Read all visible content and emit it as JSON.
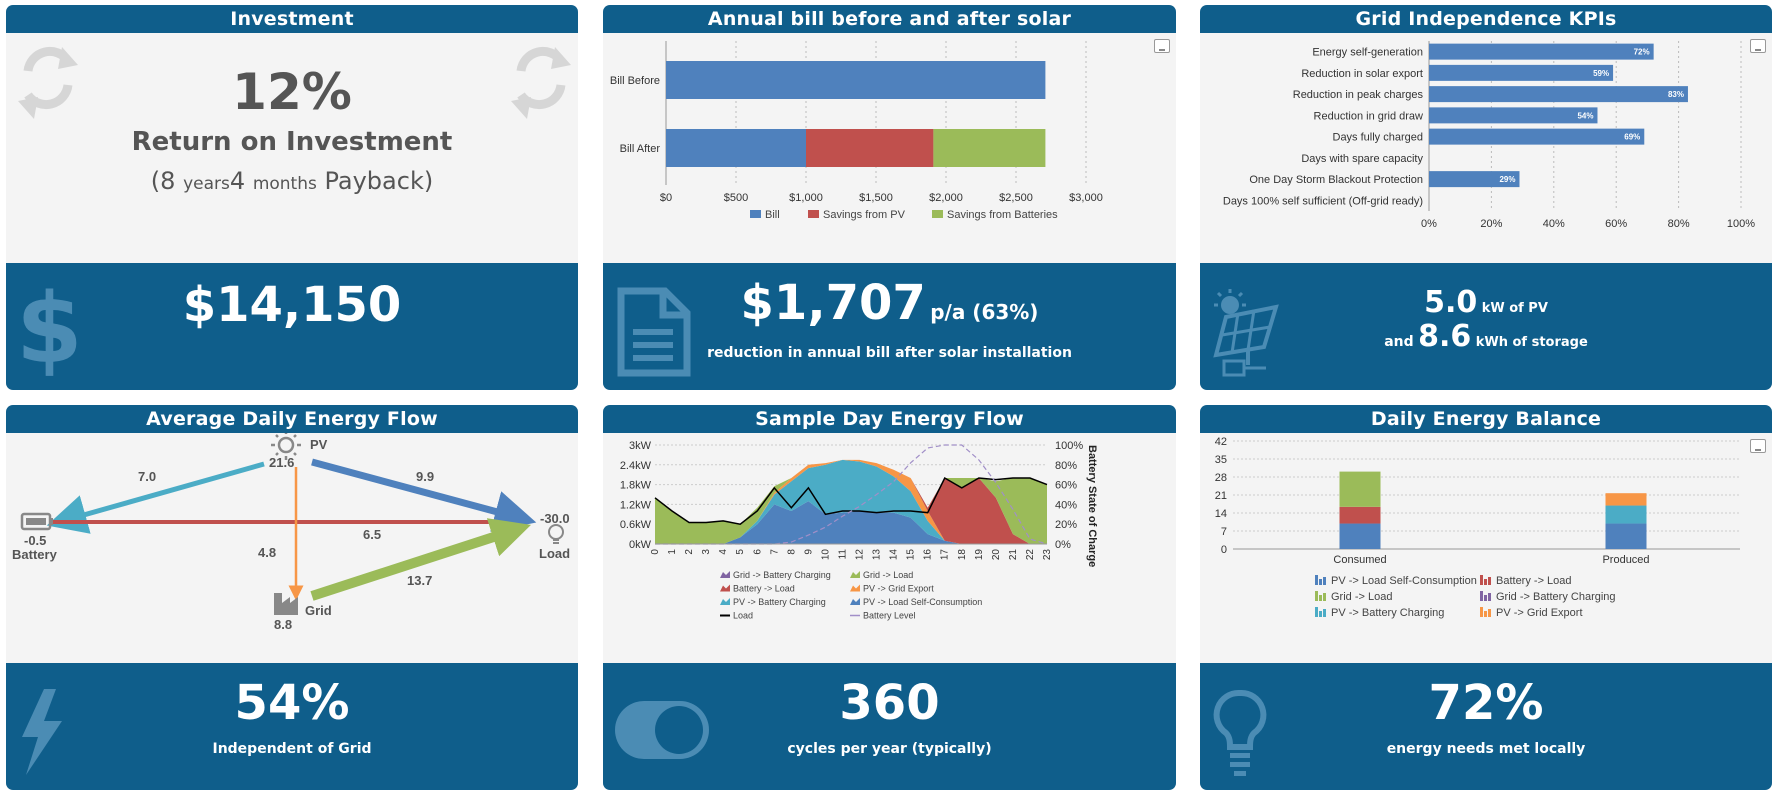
{
  "investment": {
    "title": "Investment",
    "roi": "12%",
    "roi_label": "Return on Investment",
    "payback_open": "(",
    "payback_years": "8",
    "payback_years_unit": "years",
    "payback_months": "4",
    "payback_months_unit": "months",
    "payback_label": "Payback)",
    "cost": "$14,150",
    "icon": "dollar-icon"
  },
  "annual_bill": {
    "title": "Annual bill before and after solar",
    "savings": "$1,707",
    "savings_unit": "p/a (63%)",
    "savings_caption": "reduction in annual bill after solar installation",
    "icon": "document-icon"
  },
  "grid_kpis": {
    "title": "Grid Independence KPIs",
    "pv_size": "5.0",
    "pv_unit": "kW of PV",
    "and_label": "and",
    "storage_size": "8.6",
    "storage_unit": "kWh of storage",
    "icon": "solar-panel-icon"
  },
  "energy_flow": {
    "title": "Average Daily Energy Flow",
    "pv_label": "PV",
    "pv_value": "21.6",
    "battery_label": "Battery",
    "battery_value": "-0.5",
    "load_label": "Load",
    "load_value": "-30.0",
    "grid_label": "Grid",
    "grid_value": "8.8",
    "flow_pv_battery": "7.0",
    "flow_pv_load": "9.9",
    "flow_battery_load": "6.5",
    "flow_pv_grid": "4.8",
    "flow_grid_load": "13.7",
    "independence": "54%",
    "independence_caption": "Independent of Grid",
    "colors": {
      "pv_battery": "#4bacc6",
      "pv_load": "#4f81bd",
      "battery_load": "#c0504d",
      "pv_grid": "#f79646",
      "grid_load": "#9bbb59"
    }
  },
  "sample_day": {
    "title": "Sample Day Energy Flow",
    "cycles": "360",
    "cycles_caption": "cycles per year (typically)",
    "icon": "toggle-icon"
  },
  "daily_balance": {
    "title": "Daily Energy Balance",
    "percent": "72%",
    "caption": "energy needs met locally",
    "icon": "lightbulb-icon"
  },
  "chart_data": [
    {
      "id": "annual-bill",
      "type": "bar",
      "orientation": "horizontal",
      "stacked": true,
      "categories": [
        "Bill Before",
        "Bill After"
      ],
      "series": [
        {
          "name": "Bill",
          "values": [
            2710,
            1000
          ],
          "color": "#4f81bd"
        },
        {
          "name": "Savings from PV",
          "values": [
            0,
            910
          ],
          "color": "#c0504d"
        },
        {
          "name": "Savings from Batteries",
          "values": [
            0,
            800
          ],
          "color": "#9bbb59"
        }
      ],
      "xlim": [
        0,
        3000
      ],
      "xticks": [
        "$0",
        "$500",
        "$1,000",
        "$1,500",
        "$2,000",
        "$2,500",
        "$3,000"
      ],
      "grid": true,
      "legend": "bottom"
    },
    {
      "id": "grid-kpis",
      "type": "bar",
      "orientation": "horizontal",
      "categories": [
        "Energy self-generation",
        "Reduction in solar export",
        "Reduction in peak charges",
        "Reduction in grid draw",
        "Days fully charged",
        "Days with spare capacity",
        "One Day Storm Blackout Protection",
        "Days 100% self sufficient (Off-grid ready)"
      ],
      "values": [
        72,
        59,
        83,
        54,
        69,
        0,
        29,
        0
      ],
      "data_labels": [
        "72%",
        "59%",
        "83%",
        "54%",
        "69%",
        "",
        "29%",
        ""
      ],
      "xlim": [
        0,
        100
      ],
      "xticks": [
        "0%",
        "20%",
        "40%",
        "60%",
        "80%",
        "100%"
      ],
      "color": "#4f81bd",
      "grid": true
    },
    {
      "id": "sample-day",
      "type": "area",
      "stacked": true,
      "x": [
        0,
        1,
        2,
        3,
        4,
        5,
        6,
        7,
        8,
        9,
        10,
        11,
        12,
        13,
        14,
        15,
        16,
        17,
        18,
        19,
        20,
        21,
        22,
        23
      ],
      "series": [
        {
          "name": "Grid -> Battery Charging",
          "color": "#8064a2",
          "values": [
            0,
            0,
            0,
            0,
            0,
            0,
            0,
            0,
            0,
            0,
            0,
            0,
            0,
            0,
            0,
            0,
            0,
            0,
            0,
            0,
            0,
            0,
            0,
            0
          ]
        },
        {
          "name": "PV -> Load Self-Consumption",
          "color": "#4f81bd",
          "values": [
            0,
            0,
            0,
            0,
            0,
            0.2,
            0.6,
            1.2,
            1.0,
            1.3,
            0.9,
            0.95,
            1.0,
            0.95,
            0.95,
            0.8,
            0.3,
            0.1,
            0,
            0,
            0,
            0,
            0,
            0
          ]
        },
        {
          "name": "PV -> Battery Charging",
          "color": "#4bacc6",
          "values": [
            0,
            0,
            0,
            0,
            0,
            0,
            0.1,
            0.3,
            0.9,
            1.0,
            1.5,
            1.6,
            1.5,
            1.4,
            1.1,
            0.8,
            0.4,
            0,
            0,
            0,
            0,
            0,
            0,
            0
          ]
        },
        {
          "name": "PV -> Grid Export",
          "color": "#f79646",
          "values": [
            0,
            0,
            0,
            0,
            0,
            0,
            0,
            0.05,
            0.1,
            0.1,
            0.05,
            0,
            0.05,
            0.1,
            0.2,
            0.4,
            0.3,
            0,
            0,
            0,
            0,
            0,
            0,
            0
          ]
        },
        {
          "name": "Battery -> Load",
          "color": "#c0504d",
          "values": [
            0,
            0,
            0,
            0,
            0,
            0,
            0,
            0,
            0,
            0,
            0,
            0,
            0,
            0,
            0,
            0,
            0.1,
            1.9,
            1.7,
            2.0,
            1.4,
            0.3,
            0,
            0
          ]
        },
        {
          "name": "Grid -> Load",
          "color": "#9bbb59",
          "values": [
            1.4,
            1.0,
            0.65,
            0.65,
            0.7,
            0.4,
            0.4,
            0.2,
            0,
            0,
            0,
            0,
            0,
            0,
            0,
            0,
            0,
            0,
            0.3,
            0,
            0.5,
            1.7,
            2.0,
            1.8
          ]
        }
      ],
      "load": [
        1.4,
        1.0,
        0.65,
        0.65,
        0.7,
        0.6,
        1.0,
        1.7,
        1.1,
        1.7,
        0.9,
        1.0,
        1.0,
        0.95,
        1.0,
        1.0,
        0.95,
        2.0,
        1.7,
        2.0,
        1.95,
        2.0,
        2.0,
        1.8
      ],
      "battery_level": [
        0,
        0,
        0,
        0,
        0,
        0,
        0,
        0,
        2,
        9,
        17,
        28,
        38,
        50,
        63,
        82,
        97,
        100,
        100,
        85,
        62,
        35,
        5,
        0
      ],
      "ylim": [
        0,
        3
      ],
      "yticks": [
        "0kW",
        "0.6kW",
        "1.2kW",
        "1.8kW",
        "2.4kW",
        "3kW"
      ],
      "y2lim": [
        0,
        100
      ],
      "y2ticks": [
        "0%",
        "20%",
        "40%",
        "60%",
        "80%",
        "100%"
      ],
      "y2label": "Battery State of Charge",
      "legend": [
        "Grid -> Battery Charging",
        "Grid -> Load",
        "Battery -> Load",
        "PV -> Grid Export",
        "PV -> Battery Charging",
        "PV -> Load Self-Consumption",
        "Load",
        "Battery Level"
      ]
    },
    {
      "id": "daily-balance",
      "type": "bar",
      "stacked": true,
      "categories": [
        "Consumed",
        "Produced"
      ],
      "series": [
        {
          "name": "PV -> Load Self-Consumption",
          "color": "#4f81bd",
          "values": [
            9.9,
            9.9
          ]
        },
        {
          "name": "Battery -> Load",
          "color": "#c0504d",
          "values": [
            6.5,
            0
          ]
        },
        {
          "name": "Grid -> Load",
          "color": "#9bbb59",
          "values": [
            13.7,
            0
          ]
        },
        {
          "name": "Grid -> Battery Charging",
          "color": "#8064a2",
          "values": [
            0,
            0
          ]
        },
        {
          "name": "PV -> Battery Charging",
          "color": "#4bacc6",
          "values": [
            0,
            7.0
          ]
        },
        {
          "name": "PV -> Grid Export",
          "color": "#f79646",
          "values": [
            0,
            4.8
          ]
        }
      ],
      "ylim": [
        0,
        42
      ],
      "yticks": [
        "0",
        "7",
        "14",
        "21",
        "28",
        "35",
        "42"
      ],
      "legend": "bottom"
    }
  ]
}
